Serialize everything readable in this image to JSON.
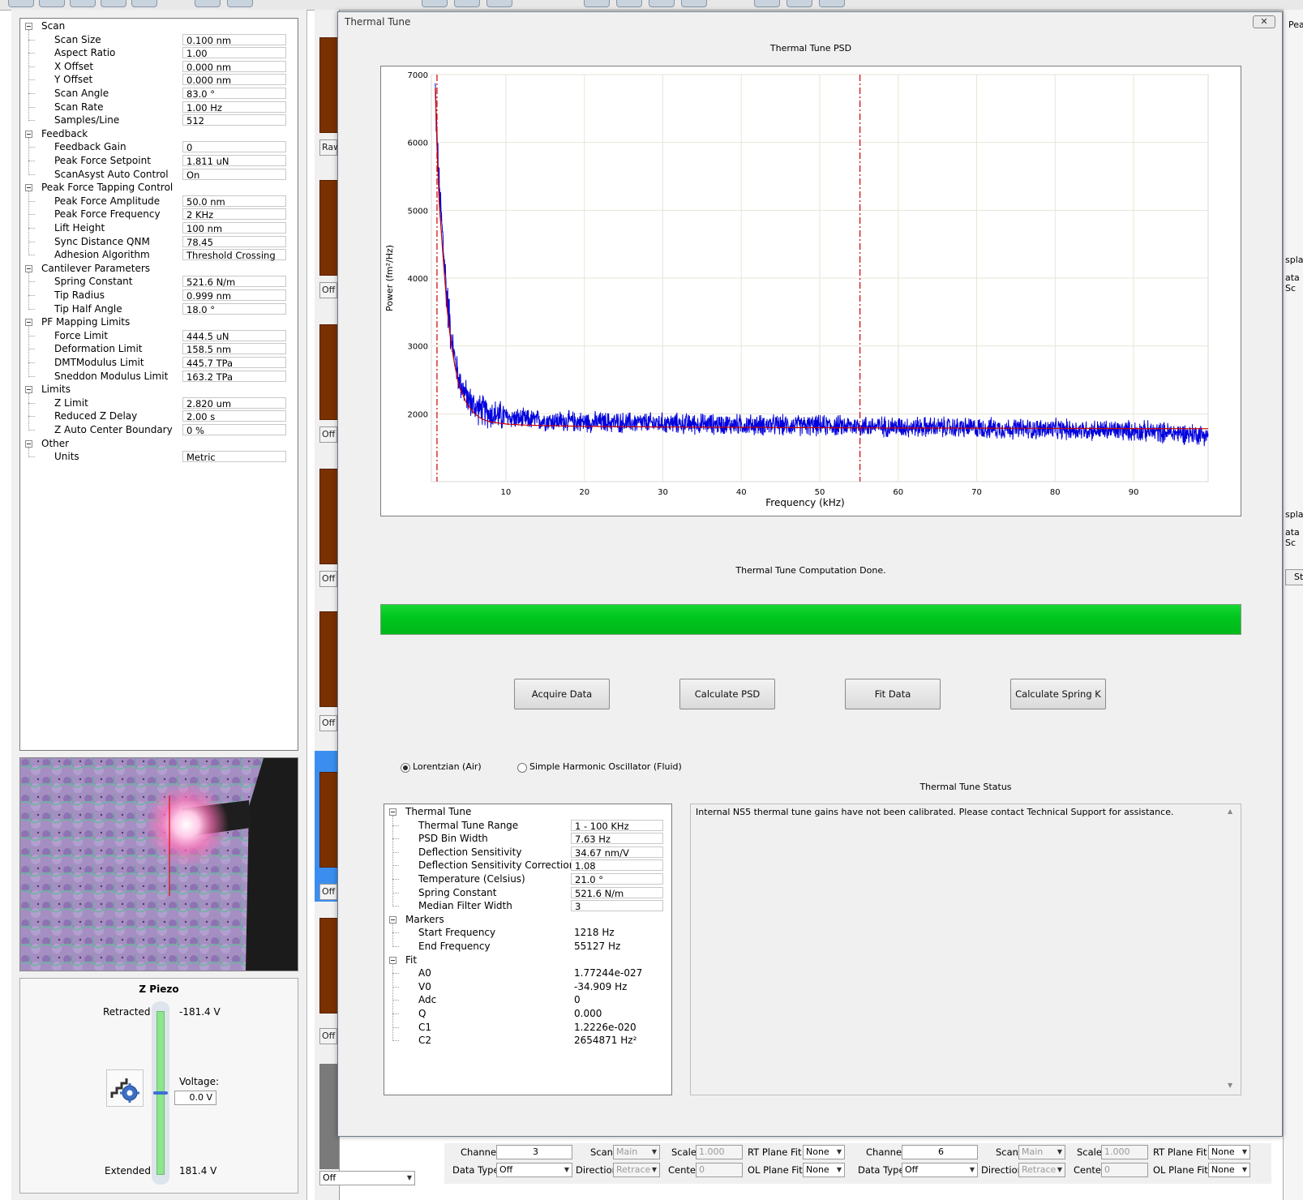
{
  "scan_params": [
    {
      "group": "Scan",
      "items": [
        {
          "label": "Scan Size",
          "value": "0.100 nm"
        },
        {
          "label": "Aspect Ratio",
          "value": "1.00"
        },
        {
          "label": "X Offset",
          "value": "0.000 nm"
        },
        {
          "label": "Y Offset",
          "value": "0.000 nm"
        },
        {
          "label": "Scan Angle",
          "value": "83.0 °"
        },
        {
          "label": "Scan Rate",
          "value": "1.00 Hz"
        },
        {
          "label": "Samples/Line",
          "value": "512"
        }
      ]
    },
    {
      "group": "Feedback",
      "items": [
        {
          "label": "Feedback Gain",
          "value": "0"
        },
        {
          "label": "Peak Force Setpoint",
          "value": "1.811 uN"
        },
        {
          "label": "ScanAsyst Auto Control",
          "value": "On"
        }
      ]
    },
    {
      "group": "Peak Force Tapping Control",
      "items": [
        {
          "label": "Peak Force Amplitude",
          "value": "50.0 nm"
        },
        {
          "label": "Peak Force Frequency",
          "value": "2 KHz"
        },
        {
          "label": "Lift Height",
          "value": "100 nm"
        },
        {
          "label": "Sync Distance QNM",
          "value": "78.45"
        },
        {
          "label": "Adhesion Algorithm",
          "value": "Threshold Crossing"
        }
      ]
    },
    {
      "group": "Cantilever Parameters",
      "items": [
        {
          "label": "Spring Constant",
          "value": "521.6 N/m"
        },
        {
          "label": "Tip Radius",
          "value": "0.999 nm"
        },
        {
          "label": "Tip Half Angle",
          "value": "18.0 °"
        }
      ]
    },
    {
      "group": "PF Mapping Limits",
      "items": [
        {
          "label": "Force Limit",
          "value": "444.5 uN"
        },
        {
          "label": "Deformation Limit",
          "value": "158.5 nm"
        },
        {
          "label": "DMTModulus Limit",
          "value": "445.7 TPa"
        },
        {
          "label": "Sneddon Modulus Limit",
          "value": "163.2 TPa"
        }
      ]
    },
    {
      "group": "Limits",
      "items": [
        {
          "label": "Z Limit",
          "value": "2.820 um"
        },
        {
          "label": "Reduced Z Delay",
          "value": "2.00 s"
        },
        {
          "label": "Z Auto Center Boundary",
          "value": "0 %"
        }
      ]
    },
    {
      "group": "Other",
      "items": [
        {
          "label": "Units",
          "value": "Metric"
        }
      ]
    }
  ],
  "zpiezo": {
    "title": "Z Piezo",
    "retracted_label": "Retracted",
    "retracted_value": "-181.4 V",
    "extended_label": "Extended",
    "extended_value": "181.4 V",
    "voltage_label": "Voltage:",
    "voltage_value": "0.0 V",
    "level": 0.5
  },
  "mid_strip": {
    "raw_label": "Raw",
    "off_label": "Off"
  },
  "right_strip": [
    "Peal",
    "splay",
    "ata Sc",
    "splay",
    "ata Sc",
    "Sto"
  ],
  "dialog": {
    "title": "Thermal Tune",
    "close_glyph": "✕",
    "chart_title": "Thermal Tune PSD",
    "status_message": "Thermal Tune Computation Done.",
    "progress": 1.0,
    "buttons": [
      "Acquire Data",
      "Calculate PSD",
      "Fit Data",
      "Calculate Spring K"
    ],
    "radio_lorentzian": "Lorentzian (Air)",
    "radio_sho": "Simple Harmonic Oscillator (Fluid)",
    "selected_model": "Lorentzian (Air)",
    "status_title": "Thermal Tune Status",
    "status_text": "Internal NS5 thermal tune gains have not been calibrated. Please contact Technical Support for assistance."
  },
  "thermal_tree": [
    {
      "group": "Thermal Tune",
      "items": [
        {
          "label": "Thermal Tune Range",
          "value": "1 - 100 KHz",
          "editable": true
        },
        {
          "label": "PSD Bin Width",
          "value": "7.63 Hz",
          "editable": true
        },
        {
          "label": "Deflection Sensitivity",
          "value": "34.67 nm/V",
          "editable": true
        },
        {
          "label": "Deflection Sensitivity Correction",
          "value": "1.08",
          "editable": true
        },
        {
          "label": "Temperature (Celsius)",
          "value": "21.0 °",
          "editable": true
        },
        {
          "label": "Spring Constant",
          "value": "521.6 N/m",
          "editable": true
        },
        {
          "label": "Median Filter Width",
          "value": "3",
          "editable": true
        }
      ]
    },
    {
      "group": "Markers",
      "items": [
        {
          "label": "Start Frequency",
          "value": "1218 Hz",
          "editable": false
        },
        {
          "label": "End Frequency",
          "value": "55127 Hz",
          "editable": false
        }
      ]
    },
    {
      "group": "Fit",
      "items": [
        {
          "label": "A0",
          "value": "1.77244e-027",
          "editable": false
        },
        {
          "label": "V0",
          "value": "-34.909 Hz",
          "editable": false
        },
        {
          "label": "Adc",
          "value": "0",
          "editable": false
        },
        {
          "label": "Q",
          "value": "0.000",
          "editable": false
        },
        {
          "label": "C1",
          "value": "1.2226e-020",
          "editable": false
        },
        {
          "label": "C2",
          "value": "2654871 Hz²",
          "editable": false
        }
      ]
    }
  ],
  "bottom_bars": [
    {
      "channel_label": "Channel",
      "channel": "3",
      "scan_label": "Scan",
      "scan": "Main",
      "scale_label": "Scale",
      "scale": "1.000",
      "rt_label": "RT Plane Fit",
      "rt": "None",
      "datatype_label": "Data Type",
      "datatype": "Off",
      "direction_label": "Direction",
      "direction": "Retrace",
      "center_label": "Center",
      "center": "0",
      "ol_label": "OL Plane Fit",
      "ol": "None"
    },
    {
      "channel_label": "Channel",
      "channel": "6",
      "scan_label": "Scan",
      "scan": "Main",
      "scale_label": "Scale",
      "scale": "1.000",
      "rt_label": "RT Plane Fit",
      "rt": "None",
      "datatype_label": "Data Type",
      "datatype": "Off",
      "direction_label": "Direction",
      "direction": "Retrace",
      "center_label": "Center",
      "center": "0",
      "ol_label": "OL Plane Fit",
      "ol": "None"
    }
  ],
  "bottom_left_select": "Off",
  "colors": {
    "psd_line": "#0000dd",
    "fit_line": "#cc0000",
    "marker": "#cc0000",
    "progress": "#00c71f"
  },
  "chart_data": {
    "type": "line",
    "title": "Thermal Tune PSD",
    "xlabel": "Frequency (kHz)",
    "ylabel": "Power (fm²/Hz)",
    "xlim": [
      0.5,
      99.5
    ],
    "ylim": [
      1000,
      7000
    ],
    "xticks": [
      10,
      20,
      30,
      40,
      50,
      60,
      70,
      80,
      90
    ],
    "yticks": [
      2000,
      3000,
      4000,
      5000,
      6000,
      7000
    ],
    "grid": true,
    "markers": [
      1.218,
      55.127
    ],
    "series": [
      {
        "name": "",
        "color": "#0000dd",
        "x": [
          1.0,
          1.2,
          1.5,
          2.0,
          2.5,
          3.0,
          3.5,
          4.0,
          5.0,
          6.0,
          7.0,
          8.0,
          10,
          12,
          15,
          20,
          25,
          30,
          35,
          40,
          45,
          50,
          55,
          60,
          65,
          70,
          75,
          80,
          85,
          90,
          95,
          99.5
        ],
        "y": [
          6800,
          6100,
          5300,
          4500,
          3700,
          3200,
          2800,
          2500,
          2250,
          2100,
          2050,
          2000,
          1950,
          1920,
          1900,
          1880,
          1870,
          1860,
          1850,
          1840,
          1830,
          1825,
          1820,
          1810,
          1800,
          1790,
          1780,
          1770,
          1760,
          1750,
          1720,
          1690
        ],
        "noise": 150
      },
      {
        "name": "",
        "color": "#cc0000",
        "x": [
          1.0,
          1.2,
          1.5,
          2.0,
          2.5,
          3.0,
          3.5,
          4.0,
          5.0,
          6.0,
          7.0,
          8.0,
          10,
          12,
          15,
          20,
          30,
          40,
          50,
          60,
          70,
          80,
          90,
          99.5
        ],
        "y": [
          6800,
          6000,
          5100,
          4300,
          3550,
          3050,
          2700,
          2420,
          2150,
          2000,
          1920,
          1880,
          1850,
          1835,
          1825,
          1815,
          1805,
          1800,
          1795,
          1790,
          1788,
          1785,
          1782,
          1780
        ]
      }
    ]
  }
}
